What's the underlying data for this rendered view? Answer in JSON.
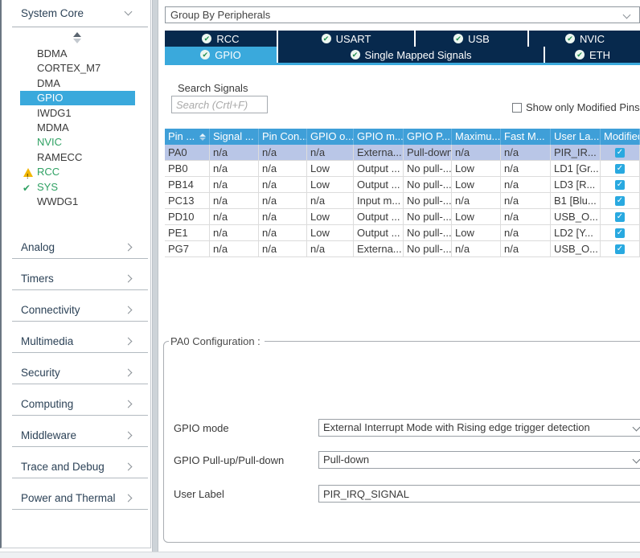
{
  "sidebar": {
    "header": {
      "label": "System Core"
    },
    "system_core_items": [
      {
        "label": "BDMA"
      },
      {
        "label": "CORTEX_M7"
      },
      {
        "label": "DMA"
      },
      {
        "label": "GPIO",
        "selected": true
      },
      {
        "label": "IWDG1"
      },
      {
        "label": "MDMA"
      },
      {
        "label": "NVIC",
        "configured": true
      },
      {
        "label": "RAMECC"
      },
      {
        "label": "RCC",
        "configured": true,
        "icon": "warning"
      },
      {
        "label": "SYS",
        "configured": true,
        "icon": "check"
      },
      {
        "label": "WWDG1"
      }
    ],
    "categories": [
      {
        "label": "Analog"
      },
      {
        "label": "Timers"
      },
      {
        "label": "Connectivity"
      },
      {
        "label": "Multimedia"
      },
      {
        "label": "Security"
      },
      {
        "label": "Computing"
      },
      {
        "label": "Middleware"
      },
      {
        "label": "Trace and Debug"
      },
      {
        "label": "Power and Thermal"
      }
    ]
  },
  "toolbar": {
    "group_by_value": "Group By Peripherals"
  },
  "tabs": {
    "row1": [
      {
        "label": "RCC"
      },
      {
        "label": "USART"
      },
      {
        "label": "USB"
      },
      {
        "label": "NVIC"
      }
    ],
    "row2": [
      {
        "label": "GPIO",
        "selected": true
      },
      {
        "label": "Single Mapped Signals"
      },
      {
        "label": "ETH"
      }
    ]
  },
  "signals": {
    "search_label": "Search Signals",
    "search_placeholder": "Search (Crtl+F)",
    "show_only_modified_label": "Show only Modified Pins",
    "show_only_modified_checked": false
  },
  "table": {
    "columns": [
      "Pin ...",
      "Signal ...",
      "Pin Con...",
      "GPIO o...",
      "GPIO m...",
      "GPIO P...",
      "Maximu...",
      "Fast M...",
      "User La...",
      "Modified"
    ],
    "rows": [
      {
        "selected": true,
        "modified": true,
        "cells": [
          "PA0",
          "n/a",
          "n/a",
          "n/a",
          "Externa...",
          "Pull-down",
          "n/a",
          "n/a",
          "PIR_IR..."
        ]
      },
      {
        "selected": false,
        "modified": true,
        "cells": [
          "PB0",
          "n/a",
          "n/a",
          "Low",
          "Output ...",
          "No pull-...",
          "Low",
          "n/a",
          "LD1 [Gr..."
        ]
      },
      {
        "selected": false,
        "modified": true,
        "cells": [
          "PB14",
          "n/a",
          "n/a",
          "Low",
          "Output ...",
          "No pull-...",
          "Low",
          "n/a",
          "LD3 [R..."
        ]
      },
      {
        "selected": false,
        "modified": true,
        "cells": [
          "PC13",
          "n/a",
          "n/a",
          "n/a",
          "Input m...",
          "No pull-...",
          "n/a",
          "n/a",
          "B1 [Blu..."
        ]
      },
      {
        "selected": false,
        "modified": true,
        "cells": [
          "PD10",
          "n/a",
          "n/a",
          "Low",
          "Output ...",
          "No pull-...",
          "Low",
          "n/a",
          "USB_O..."
        ]
      },
      {
        "selected": false,
        "modified": true,
        "cells": [
          "PE1",
          "n/a",
          "n/a",
          "Low",
          "Output ...",
          "No pull-...",
          "Low",
          "n/a",
          "LD2 [Y..."
        ]
      },
      {
        "selected": false,
        "modified": true,
        "cells": [
          "PG7",
          "n/a",
          "n/a",
          "n/a",
          "Externa...",
          "No pull-...",
          "n/a",
          "n/a",
          "USB_O..."
        ]
      }
    ]
  },
  "config": {
    "title": "PA0 Configuration :",
    "fields": [
      {
        "label": "GPIO mode",
        "value": "External Interrupt Mode with Rising edge trigger detection",
        "type": "select"
      },
      {
        "label": "GPIO Pull-up/Pull-down",
        "value": "Pull-down",
        "type": "select"
      },
      {
        "label": "User Label",
        "value": "PIR_IRQ_SIGNAL",
        "type": "text"
      }
    ]
  },
  "colors": {
    "navy": "#07294d",
    "accent_blue": "#3aa9dc",
    "table_header_blue": "#3f9fd8",
    "selected_row": "#b9c6e7",
    "configured_green": "#2fa163",
    "warning_yellow": "#f2b705",
    "checkbox_blue": "#29a9e0"
  }
}
